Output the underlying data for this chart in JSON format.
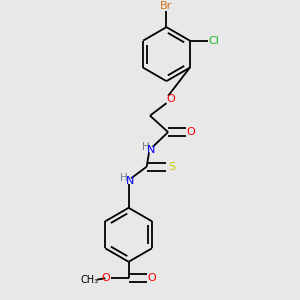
{
  "bg_color": "#e8e8e8",
  "bond_color": "#000000",
  "atom_colors": {
    "Br": "#cc7722",
    "Cl": "#22bb22",
    "O": "#ff0000",
    "N": "#0000ff",
    "S": "#cccc00",
    "H": "#708090"
  },
  "lw": 1.3,
  "fs": 7.5,
  "ring_r": 0.082
}
